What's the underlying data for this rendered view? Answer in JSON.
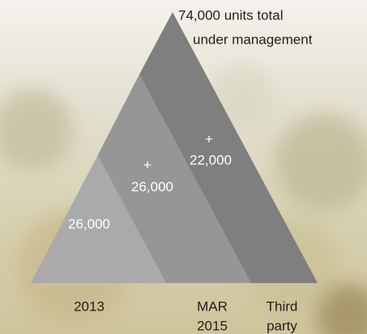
{
  "headline": [
    "74,000 units total",
    "under management"
  ],
  "segments": [
    {
      "label": "26,000",
      "caption": [
        "2013"
      ]
    },
    {
      "sign": "+",
      "label": "26,000",
      "caption": [
        "MAR",
        "2015"
      ]
    },
    {
      "sign": "+",
      "label": "22,000",
      "caption": [
        "Third",
        "party"
      ]
    }
  ]
}
